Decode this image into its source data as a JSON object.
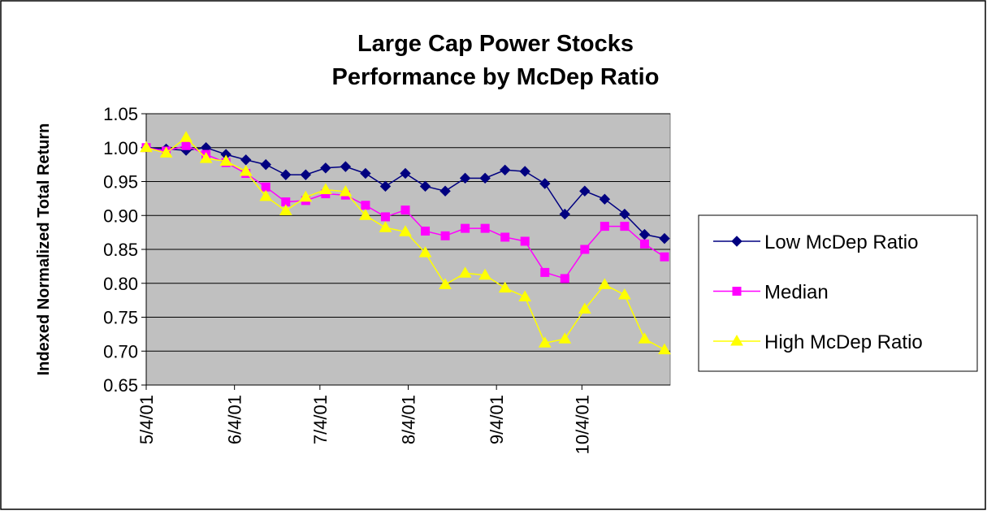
{
  "chart_data": {
    "type": "line",
    "title": [
      "Large Cap Power Stocks",
      "Performance by McDep Ratio"
    ],
    "y_label": "Indexed Normalized Total Return",
    "x": [
      "2001-05-04",
      "2001-05-11",
      "2001-05-18",
      "2001-05-25",
      "2001-06-01",
      "2001-06-08",
      "2001-06-15",
      "2001-06-22",
      "2001-06-29",
      "2001-07-06",
      "2001-07-13",
      "2001-07-20",
      "2001-07-27",
      "2001-08-03",
      "2001-08-10",
      "2001-08-17",
      "2001-08-24",
      "2001-08-31",
      "2001-09-07",
      "2001-09-14",
      "2001-09-21",
      "2001-09-28",
      "2001-10-05",
      "2001-10-12",
      "2001-10-19",
      "2001-10-26",
      "2001-11-02"
    ],
    "xlim": [
      "2001-05-04",
      "2001-11-04"
    ],
    "xticks": [
      {
        "value": "2001-05-04",
        "label": "5/4/01"
      },
      {
        "value": "2001-06-04",
        "label": "6/4/01"
      },
      {
        "value": "2001-07-04",
        "label": "7/4/01"
      },
      {
        "value": "2001-08-04",
        "label": "8/4/01"
      },
      {
        "value": "2001-09-04",
        "label": "9/4/01"
      },
      {
        "value": "2001-10-04",
        "label": "10/4/01"
      }
    ],
    "ylim": [
      0.65,
      1.05
    ],
    "yticks": [
      {
        "value": 0.65,
        "label": "0.65"
      },
      {
        "value": 0.7,
        "label": "0.70"
      },
      {
        "value": 0.75,
        "label": "0.75"
      },
      {
        "value": 0.8,
        "label": "0.80"
      },
      {
        "value": 0.85,
        "label": "0.85"
      },
      {
        "value": 0.9,
        "label": "0.90"
      },
      {
        "value": 0.95,
        "label": "0.95"
      },
      {
        "value": 1.0,
        "label": "1.00"
      },
      {
        "value": 1.05,
        "label": "1.05"
      }
    ],
    "grid": true,
    "legend": "right",
    "series": [
      {
        "name": "Low McDep Ratio",
        "color": "#000080",
        "marker": "diamond",
        "values": [
          1.0,
          0.998,
          0.996,
          1.0,
          0.99,
          0.982,
          0.975,
          0.96,
          0.96,
          0.97,
          0.972,
          0.962,
          0.943,
          0.962,
          0.943,
          0.936,
          0.955,
          0.955,
          0.967,
          0.965,
          0.947,
          0.902,
          0.936,
          0.924,
          0.902,
          0.872,
          0.866
        ]
      },
      {
        "name": "Median",
        "color": "#ff00ff",
        "marker": "square",
        "values": [
          1.0,
          0.995,
          1.003,
          0.99,
          0.978,
          0.962,
          0.942,
          0.92,
          0.922,
          0.932,
          0.93,
          0.915,
          0.898,
          0.908,
          0.877,
          0.87,
          0.881,
          0.881,
          0.868,
          0.862,
          0.816,
          0.807,
          0.85,
          0.884,
          0.884,
          0.858,
          0.839
        ]
      },
      {
        "name": "High McDep Ratio",
        "color": "#ffff00",
        "marker": "triangle",
        "values": [
          1.0,
          0.992,
          1.015,
          0.984,
          0.98,
          0.965,
          0.928,
          0.907,
          0.927,
          0.938,
          0.935,
          0.9,
          0.882,
          0.876,
          0.845,
          0.798,
          0.815,
          0.812,
          0.793,
          0.78,
          0.712,
          0.718,
          0.762,
          0.798,
          0.783,
          0.718,
          0.702
        ]
      }
    ]
  }
}
